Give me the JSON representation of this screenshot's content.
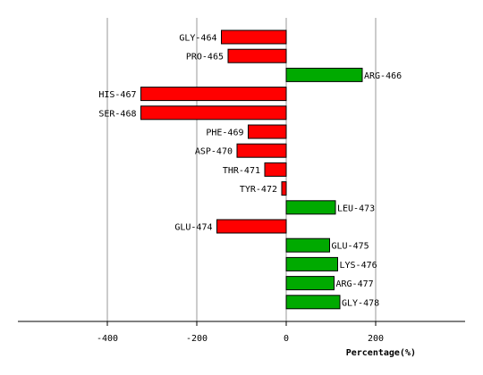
{
  "chart_data": {
    "type": "bar",
    "orientation": "horizontal",
    "categories": [
      "GLY-464",
      "PRO-465",
      "ARG-466",
      "HIS-467",
      "SER-468",
      "PHE-469",
      "ASP-470",
      "THR-471",
      "TYR-472",
      "LEU-473",
      "GLU-474",
      "GLU-475",
      "LYS-476",
      "ARG-477",
      "GLY-478"
    ],
    "values": [
      -145,
      -130,
      170,
      -325,
      -325,
      -85,
      -110,
      -48,
      -10,
      110,
      -155,
      97,
      115,
      107,
      120
    ],
    "xlabel": "Percentage(%)",
    "ylabel": "",
    "xlim": [
      -600,
      400
    ],
    "xticks": [
      -400,
      -200,
      0,
      200
    ],
    "xtick_labels": [
      "-400",
      "-200",
      "0",
      "200"
    ],
    "grid": true,
    "colors": {
      "positive": "#00aa00",
      "negative": "#ff0000",
      "outline": "#000000",
      "grid": "#999999",
      "axis": "#000000"
    }
  }
}
